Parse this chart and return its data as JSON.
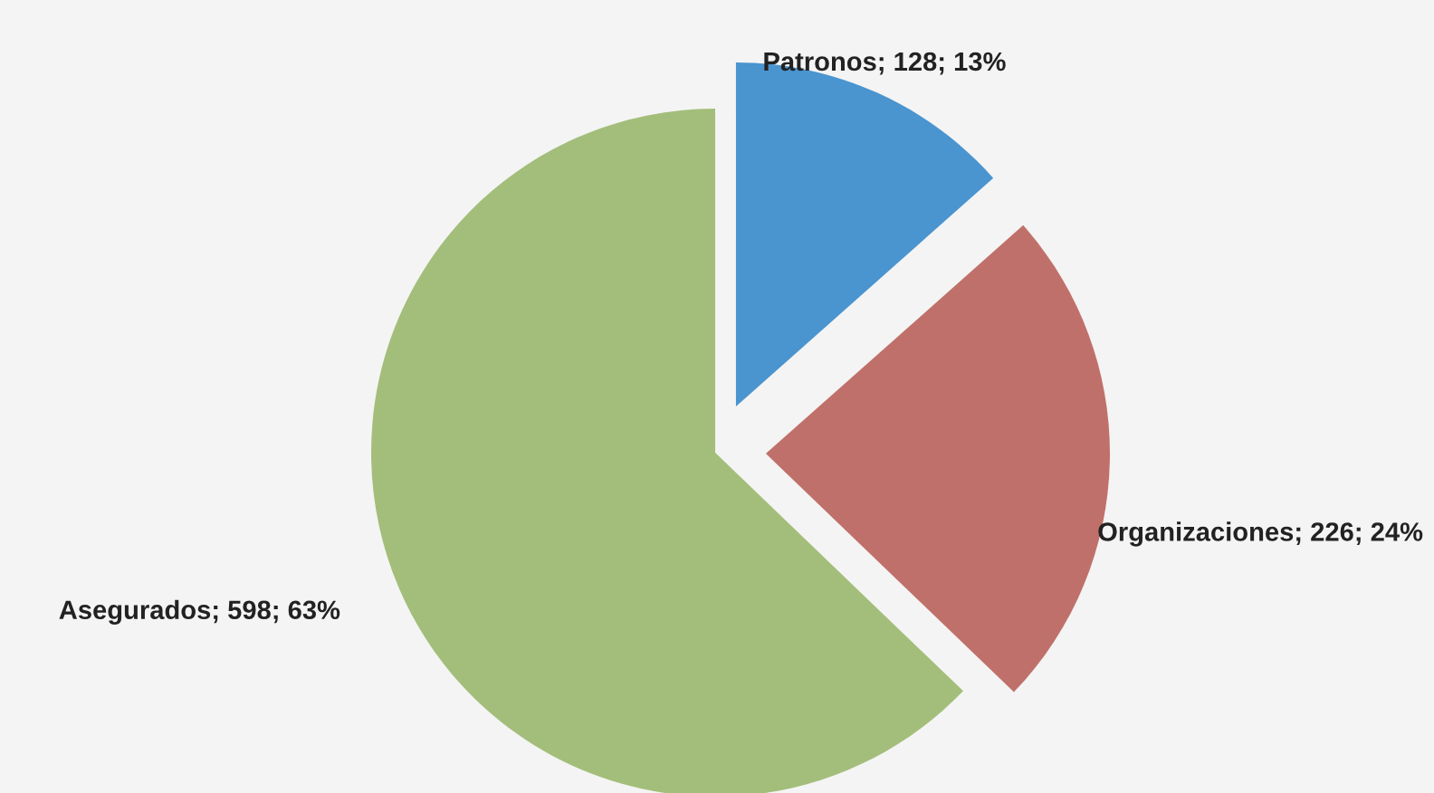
{
  "chart_data": {
    "type": "pie",
    "categories": [
      "Patronos",
      "Organizaciones",
      "Asegurados"
    ],
    "values": [
      128,
      226,
      598
    ],
    "value_labels": [
      "128; 13%",
      "226; 24%",
      "598; 63%"
    ],
    "colors": [
      "#4a94cf",
      "#c0706a",
      "#a3be7a"
    ]
  }
}
